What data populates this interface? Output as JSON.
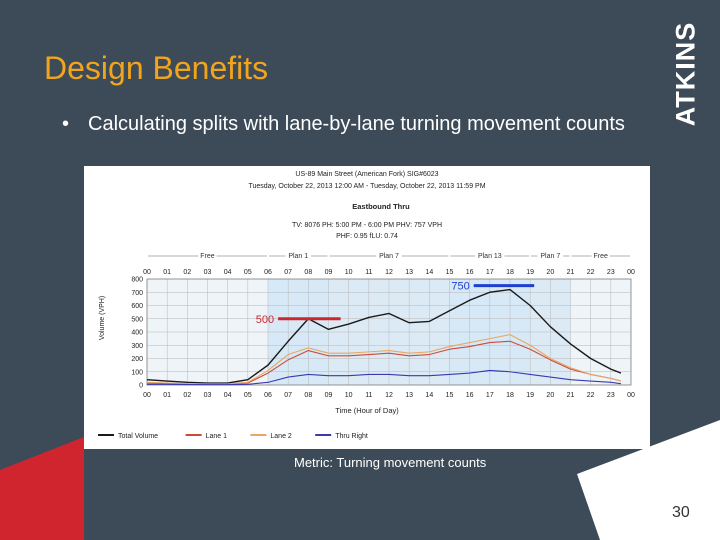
{
  "slide": {
    "title": "Design Benefits",
    "logo_text": "ATKINS",
    "bullet_marker": "•",
    "bullet_text": "Calculating splits with lane-by-lane turning movement counts",
    "caption": "Metric: Turning movement counts",
    "page_number": "30",
    "colors": {
      "background": "#3d4a58",
      "title": "#f2a51a",
      "accent_red": "#d0252e"
    }
  },
  "chart_data": {
    "type": "line",
    "title": "US-89 Main Street (American Fork) SIG#6023",
    "subtitle": "Tuesday, October 22, 2013 12:00 AM - Tuesday, October 22, 2013 11:59 PM",
    "heading": "Eastbound Thru",
    "stats_line1": "TV: 8076 PH: 5:00 PM - 6:00 PM PHV: 757 VPH",
    "stats_line2": "PHF: 0.95     fLU: 0.74",
    "xlabel": "Time (Hour of Day)",
    "ylabel": "Volume (VPH)",
    "ylim": [
      0,
      800
    ],
    "yticks": [
      "0",
      "100",
      "200",
      "300",
      "400",
      "500",
      "600",
      "700",
      "800"
    ],
    "xticks": [
      "00",
      "01",
      "02",
      "03",
      "04",
      "05",
      "06",
      "07",
      "08",
      "09",
      "10",
      "11",
      "12",
      "13",
      "14",
      "15",
      "16",
      "17",
      "18",
      "19",
      "20",
      "21",
      "22",
      "23",
      "00"
    ],
    "x": [
      0,
      1,
      2,
      3,
      4,
      5,
      6,
      7,
      8,
      9,
      10,
      11,
      12,
      13,
      14,
      15,
      16,
      17,
      18,
      19,
      20,
      21,
      22,
      23,
      23.5
    ],
    "grid": true,
    "legend_position": "bottom",
    "plans": [
      {
        "label": "Free",
        "start": 0,
        "end": 6
      },
      {
        "label": "Plan 1",
        "start": 6,
        "end": 9
      },
      {
        "label": "Plan 7",
        "start": 9,
        "end": 15
      },
      {
        "label": "Plan 13",
        "start": 15,
        "end": 19
      },
      {
        "label": "Plan 7",
        "start": 19,
        "end": 21
      },
      {
        "label": "Free",
        "start": 21,
        "end": 24
      }
    ],
    "series": [
      {
        "name": "Total Volume",
        "color": "#1a1a1a",
        "values": [
          40,
          30,
          20,
          15,
          15,
          40,
          150,
          330,
          500,
          420,
          460,
          510,
          540,
          470,
          480,
          560,
          640,
          700,
          720,
          600,
          440,
          310,
          200,
          120,
          90
        ]
      },
      {
        "name": "Lane 1",
        "color": "#cc4a3c",
        "values": [
          15,
          10,
          8,
          5,
          5,
          15,
          90,
          190,
          260,
          220,
          220,
          230,
          240,
          220,
          230,
          270,
          290,
          320,
          330,
          270,
          190,
          120,
          80,
          50,
          30
        ]
      },
      {
        "name": "Lane 2",
        "color": "#e7a864",
        "values": [
          20,
          15,
          10,
          8,
          8,
          20,
          110,
          230,
          280,
          240,
          240,
          250,
          260,
          240,
          250,
          290,
          320,
          350,
          380,
          300,
          200,
          130,
          80,
          50,
          30
        ]
      },
      {
        "name": "Thru Right",
        "color": "#3a3ab0",
        "values": [
          5,
          5,
          3,
          2,
          2,
          5,
          20,
          60,
          80,
          70,
          70,
          80,
          80,
          70,
          70,
          80,
          90,
          110,
          100,
          80,
          60,
          40,
          30,
          20,
          10
        ]
      }
    ],
    "annotations": [
      {
        "label": "500",
        "value": 500,
        "start": 6.5,
        "end": 9.6,
        "color": "#d0252e"
      },
      {
        "label": "750",
        "value": 750,
        "start": 16.2,
        "end": 19.2,
        "color": "#1f3fd1"
      }
    ]
  }
}
